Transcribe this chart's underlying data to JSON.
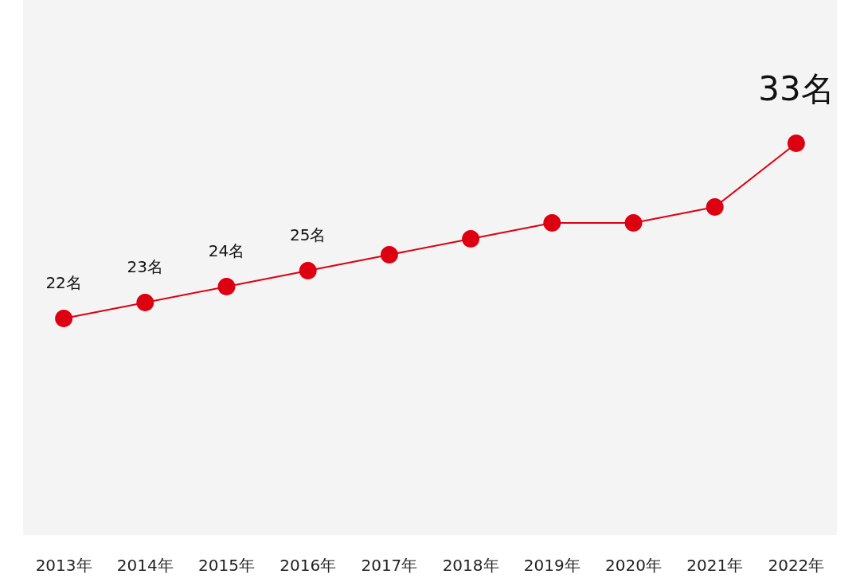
{
  "chart_data": {
    "type": "line",
    "categories": [
      "2013年",
      "2014年",
      "2015年",
      "2016年",
      "2017年",
      "2018年",
      "2019年",
      "2020年",
      "2021年",
      "2022年"
    ],
    "series": [
      {
        "color": "#dd0011",
        "values": [
          22,
          23,
          24,
          25,
          26,
          27,
          28,
          28,
          29,
          33
        ],
        "value_labels": [
          "22名",
          "23名",
          "24名",
          "25名",
          null,
          null,
          null,
          null,
          null,
          "33名"
        ]
      }
    ],
    "marker": "circle",
    "line_style": "solid",
    "grid": false,
    "tick_labels": "x"
  }
}
